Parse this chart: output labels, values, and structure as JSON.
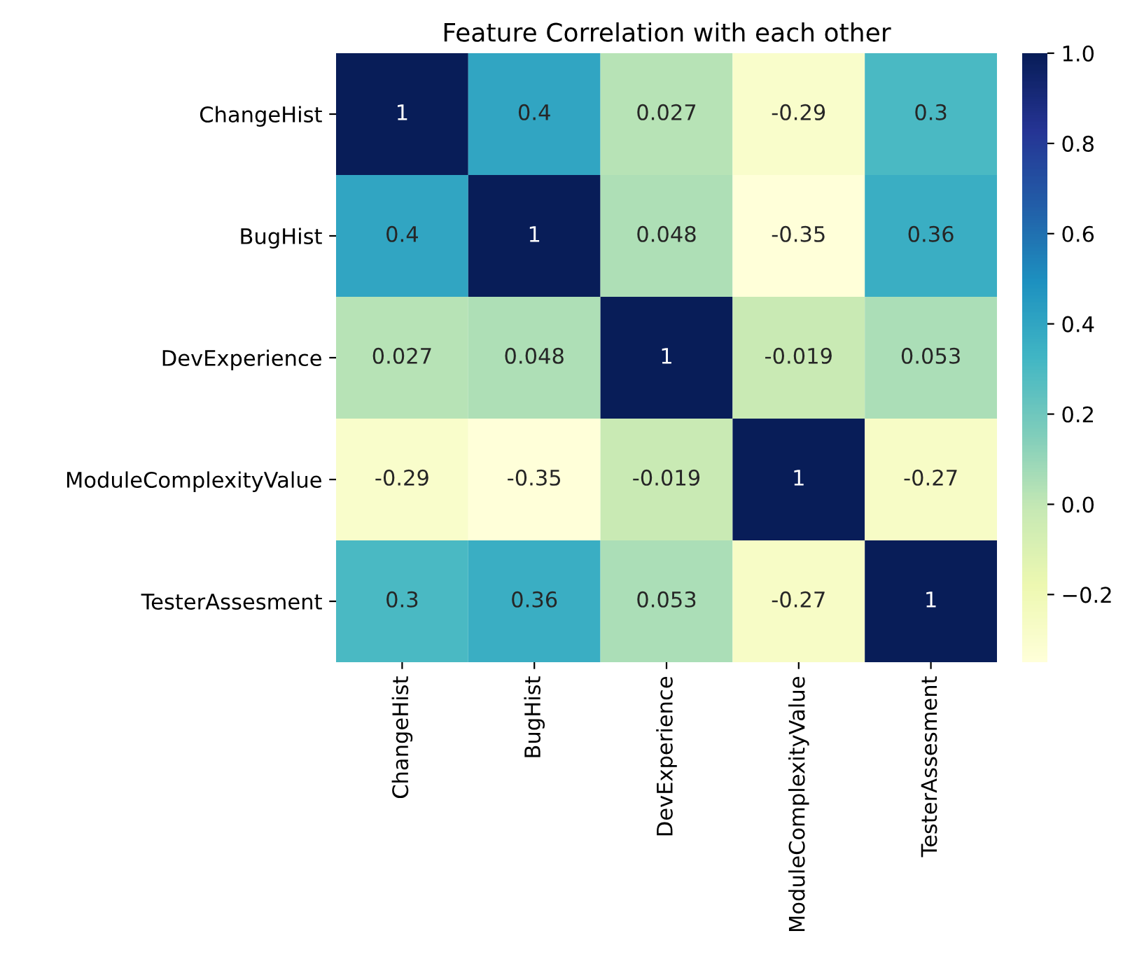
{
  "chart_data": {
    "type": "heatmap",
    "title": "Feature Correlation with each other",
    "categories": [
      "ChangeHist",
      "BugHist",
      "DevExperience",
      "ModuleComplexityValue",
      "TesterAssesment"
    ],
    "y_categories": [
      "ChangeHist",
      "BugHist",
      "DevExperience",
      "ModuleComplexityValue",
      "TesterAssesment"
    ],
    "cells": [
      [
        1,
        0.4,
        0.027,
        -0.29,
        0.3
      ],
      [
        0.4,
        1,
        0.048,
        -0.35,
        0.36
      ],
      [
        0.027,
        0.048,
        1,
        -0.019,
        0.053
      ],
      [
        -0.29,
        -0.35,
        -0.019,
        1,
        -0.27
      ],
      [
        0.3,
        0.36,
        0.053,
        -0.27,
        1
      ]
    ],
    "data_labels": true,
    "clim": [
      -0.35,
      1.0
    ],
    "cticks": [
      {
        "value": -0.2,
        "label": "−0.2"
      },
      {
        "value": 0.0,
        "label": "0.0"
      },
      {
        "value": 0.2,
        "label": "0.2"
      },
      {
        "value": 0.4,
        "label": "0.4"
      },
      {
        "value": 0.6,
        "label": "0.6"
      },
      {
        "value": 0.8,
        "label": "0.8"
      },
      {
        "value": 1.0,
        "label": "1.0"
      }
    ]
  }
}
